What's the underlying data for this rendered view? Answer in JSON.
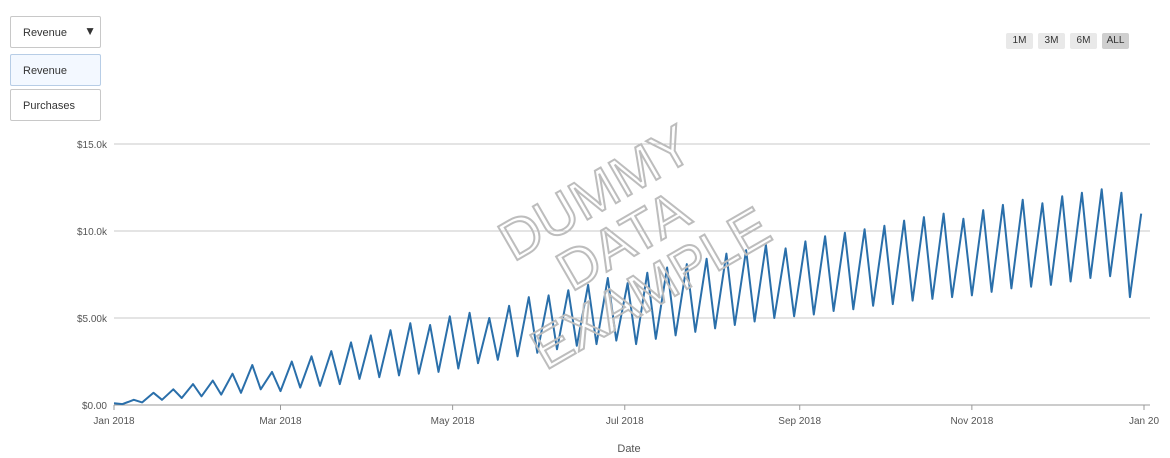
{
  "dropdown": {
    "selected": "Revenue",
    "options": [
      "Revenue",
      "Purchases"
    ]
  },
  "range_buttons": [
    "1M",
    "3M",
    "6M",
    "ALL"
  ],
  "range_selected": "ALL",
  "watermark": [
    "DUMMY",
    "DATA",
    "EXAMPLE"
  ],
  "colors": {
    "line": "#2a6faa",
    "grid": "#c8c8c8",
    "watermark": "#bdbdbd"
  },
  "chart_data": {
    "type": "line",
    "title": "",
    "xlabel": "Date",
    "ylabel": "",
    "ylim": [
      0,
      15000
    ],
    "y_ticks": [
      0,
      5000,
      10000,
      15000
    ],
    "y_tick_labels": [
      "$0.00",
      "$5.00k",
      "$10.0k",
      "$15.0k"
    ],
    "x_range": [
      "2018-01-01",
      "2019-01-01"
    ],
    "x_ticks": [
      "2018-01-01",
      "2018-03-01",
      "2018-05-01",
      "2018-07-01",
      "2018-09-01",
      "2018-11-01",
      "2019-01-01"
    ],
    "x_tick_labels": [
      "Jan 2018",
      "Mar 2018",
      "May 2018",
      "Jul 2018",
      "Sep 2018",
      "Nov 2018",
      "Jan 20"
    ],
    "grid": true,
    "series": [
      {
        "x": [
          "2018-01-01",
          "2018-01-08",
          "2018-01-15",
          "2018-01-22",
          "2018-01-29",
          "2018-02-05",
          "2018-02-12",
          "2018-02-19",
          "2018-02-26",
          "2018-03-05",
          "2018-03-12",
          "2018-03-19",
          "2018-03-26",
          "2018-04-02",
          "2018-04-09",
          "2018-04-16",
          "2018-04-23",
          "2018-04-30",
          "2018-05-07",
          "2018-05-14",
          "2018-05-21",
          "2018-05-28",
          "2018-06-04",
          "2018-06-11",
          "2018-06-18",
          "2018-06-25",
          "2018-07-02",
          "2018-07-09",
          "2018-07-16",
          "2018-07-23",
          "2018-07-30",
          "2018-08-06",
          "2018-08-13",
          "2018-08-20",
          "2018-08-27",
          "2018-09-03",
          "2018-09-10",
          "2018-09-17",
          "2018-09-24",
          "2018-10-01",
          "2018-10-08",
          "2018-10-15",
          "2018-10-22",
          "2018-10-29",
          "2018-11-05",
          "2018-11-12",
          "2018-11-19",
          "2018-11-26",
          "2018-12-03",
          "2018-12-10",
          "2018-12-17",
          "2018-12-24",
          "2018-12-31"
        ],
        "values": [
          100,
          300,
          700,
          900,
          1200,
          1400,
          1800,
          2300,
          1900,
          2500,
          2800,
          3100,
          3600,
          4000,
          4300,
          4700,
          4600,
          5100,
          5300,
          5000,
          5700,
          6200,
          6300,
          6600,
          6900,
          7300,
          7000,
          7600,
          7900,
          8100,
          8400,
          8700,
          8900,
          9200,
          9000,
          9400,
          9700,
          9900,
          10100,
          10300,
          10600,
          10800,
          11000,
          10700,
          11200,
          11500,
          11800,
          11600,
          12000,
          12200,
          12400,
          12200,
          11000
        ]
      },
      {
        "x": [
          "2018-01-04",
          "2018-01-11",
          "2018-01-18",
          "2018-01-25",
          "2018-02-01",
          "2018-02-08",
          "2018-02-15",
          "2018-02-22",
          "2018-03-01",
          "2018-03-08",
          "2018-03-15",
          "2018-03-22",
          "2018-03-29",
          "2018-04-05",
          "2018-04-12",
          "2018-04-19",
          "2018-04-26",
          "2018-05-03",
          "2018-05-10",
          "2018-05-17",
          "2018-05-24",
          "2018-05-31",
          "2018-06-07",
          "2018-06-14",
          "2018-06-21",
          "2018-06-28",
          "2018-07-05",
          "2018-07-12",
          "2018-07-19",
          "2018-07-26",
          "2018-08-02",
          "2018-08-09",
          "2018-08-16",
          "2018-08-23",
          "2018-08-30",
          "2018-09-06",
          "2018-09-13",
          "2018-09-20",
          "2018-09-27",
          "2018-10-04",
          "2018-10-11",
          "2018-10-18",
          "2018-10-25",
          "2018-11-01",
          "2018-11-08",
          "2018-11-15",
          "2018-11-22",
          "2018-11-29",
          "2018-12-06",
          "2018-12-13",
          "2018-12-20",
          "2018-12-27"
        ],
        "values": [
          50,
          150,
          300,
          400,
          500,
          600,
          700,
          900,
          800,
          1000,
          1100,
          1200,
          1500,
          1600,
          1700,
          1800,
          1900,
          2100,
          2400,
          2600,
          2800,
          3000,
          3200,
          3400,
          3500,
          3700,
          3500,
          3800,
          4000,
          4200,
          4400,
          4600,
          4800,
          5000,
          5100,
          5200,
          5400,
          5500,
          5700,
          5800,
          6000,
          6100,
          6200,
          6300,
          6500,
          6700,
          6800,
          6900,
          7100,
          7300,
          7400,
          6200
        ]
      }
    ]
  }
}
